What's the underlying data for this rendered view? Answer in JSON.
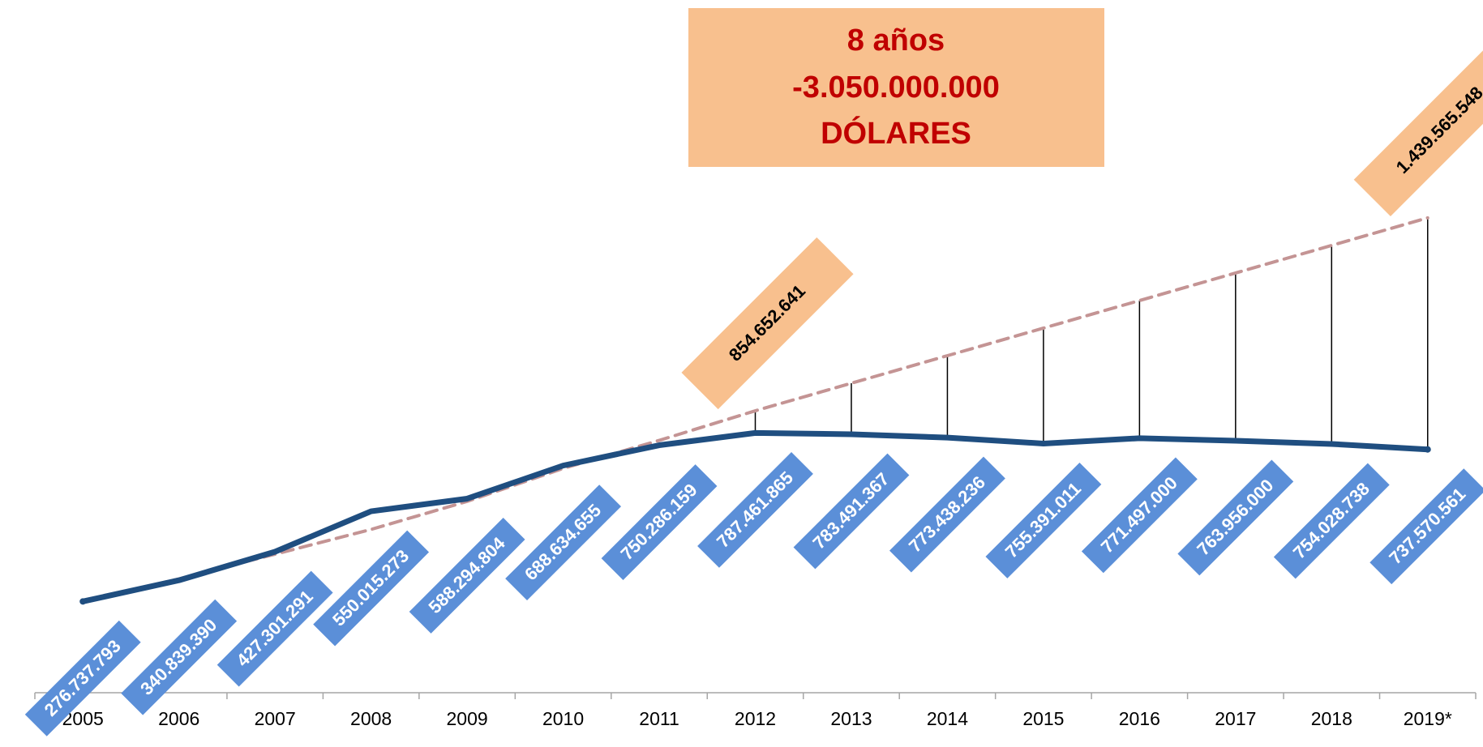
{
  "chart_data": {
    "type": "line",
    "annotation": [
      "8 años",
      "-3.050.000.000",
      "DÓLARES"
    ],
    "categories": [
      "2005",
      "2006",
      "2007",
      "2008",
      "2009",
      "2010",
      "2011",
      "2012",
      "2013",
      "2014",
      "2015",
      "2016",
      "2017",
      "2018",
      "2019*"
    ],
    "series": [
      {
        "color": "#1f4e80",
        "style": "solid",
        "values": [
          276737793,
          340839390,
          427301291,
          550015273,
          588294804,
          688634655,
          750286159,
          787461865,
          783491367,
          773438236,
          755391011,
          771497000,
          763956000,
          754028738,
          737570561
        ],
        "value_labels": [
          "276.737.793",
          "340.839.390",
          "427.301.291",
          "550.015.273",
          "588.294.804",
          "688.634.655",
          "750.286.159",
          "787.461.865",
          "783.491.367",
          "773.438.236",
          "755.391.011",
          "771.497.000",
          "763.956.000",
          "754.028.738",
          "737.570.561"
        ]
      },
      {
        "color": "#c49494",
        "style": "dashed",
        "values": [
          276737793,
          345000000,
          420000000,
          495000000,
          580000000,
          680000000,
          765000000,
          854652641,
          938212199,
          1021771757,
          1105331315,
          1188890873,
          1272450431,
          1356009990,
          1439565548
        ],
        "value_labels": [
          null,
          null,
          null,
          null,
          null,
          null,
          null,
          "854.652.641",
          null,
          null,
          null,
          null,
          null,
          null,
          "1.439.565.548"
        ]
      }
    ],
    "ylim": [
      0,
      2100000000
    ]
  }
}
